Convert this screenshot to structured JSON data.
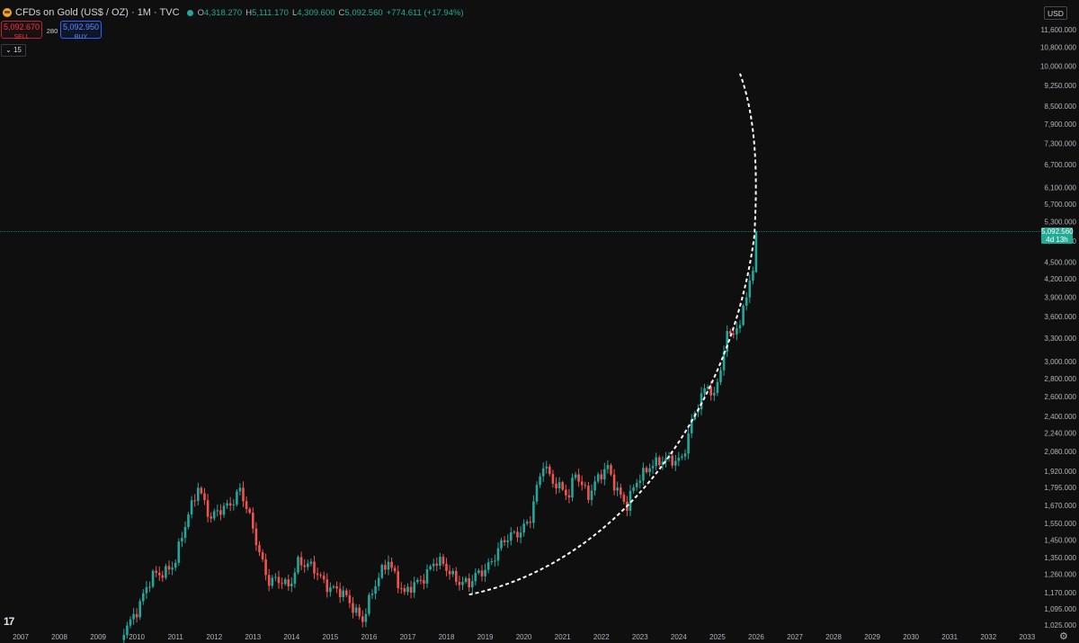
{
  "header": {
    "title": "CFDs on Gold (US$ / OZ) · 1M · TVC",
    "open_key": "O",
    "open": "4,318.270",
    "high_key": "H",
    "high": "5,111.170",
    "low_key": "L",
    "low": "4,309.600",
    "close_key": "C",
    "close": "5,092.560",
    "change": "+774.611 (+17.94%)"
  },
  "trade": {
    "sell_price": "5,092.670",
    "sell_label": "SELL",
    "spread": "280",
    "buy_price": "5,092.950",
    "buy_label": "BUY"
  },
  "collapse_label": "15",
  "currency": "USD",
  "last_price_label": {
    "price": "5,092.560",
    "countdown": "4d 13h"
  },
  "logo_text": "17",
  "colors": {
    "up": "#26a69a",
    "down": "#ef5350",
    "background": "#0f0f0f",
    "price_line": "#22ab94"
  },
  "chart_data": {
    "type": "candlestick",
    "title": "CFDs on Gold (US$ / OZ) · 1M · TVC",
    "scale": "log",
    "x_axis_ticks": [
      "2007",
      "2008",
      "2009",
      "2010",
      "2011",
      "2012",
      "2013",
      "2014",
      "2015",
      "2016",
      "2017",
      "2018",
      "2019",
      "2020",
      "2021",
      "2022",
      "2023",
      "2024",
      "2025",
      "2026",
      "2027",
      "2028",
      "2029",
      "2030",
      "2031",
      "2032",
      "2033"
    ],
    "y_axis_ticks": [
      1025,
      1095,
      1170,
      1260,
      1350,
      1450,
      1550,
      1670,
      1795,
      1920,
      2080,
      2240,
      2400,
      2600,
      2800,
      3000,
      3300,
      3600,
      3900,
      4200,
      4500,
      4900,
      5300,
      5700,
      6100,
      6700,
      7300,
      7900,
      8500,
      9250,
      10000,
      10800,
      11600
    ],
    "y_tick_labels": [
      "1,025.000",
      "1,095.000",
      "1,170.000",
      "1,260.000",
      "1,350.000",
      "1,450.000",
      "1,550.000",
      "1,670.000",
      "1,795.000",
      "1,920.000",
      "2,080.000",
      "2,240.000",
      "2,400.000",
      "2,600.000",
      "2,800.000",
      "3,000.000",
      "3,300.000",
      "3,600.000",
      "3,900.000",
      "4,200.000",
      "4,500.000",
      "4,900.000",
      "5,300.000",
      "5,700.000",
      "6,100.000",
      "6,700.000",
      "7,300.000",
      "7,900.000",
      "8,500.000",
      "9,250.000",
      "10,000.000",
      "10,800.000",
      "11,600.000"
    ],
    "price_key_points": [
      [
        "2009-09",
        1000
      ],
      [
        "2010-06",
        1240
      ],
      [
        "2011-01",
        1330
      ],
      [
        "2011-08",
        1830
      ],
      [
        "2011-12",
        1565
      ],
      [
        "2012-09",
        1775
      ],
      [
        "2013-06",
        1230
      ],
      [
        "2013-12",
        1200
      ],
      [
        "2014-03",
        1340
      ],
      [
        "2015-03",
        1180
      ],
      [
        "2015-11",
        1060
      ],
      [
        "2016-07",
        1350
      ],
      [
        "2016-12",
        1150
      ],
      [
        "2017-09",
        1320
      ],
      [
        "2017-12",
        1300
      ],
      [
        "2018-08",
        1200
      ],
      [
        "2019-06",
        1410
      ],
      [
        "2019-09",
        1470
      ],
      [
        "2020-03",
        1580
      ],
      [
        "2020-07",
        1970
      ],
      [
        "2021-03",
        1710
      ],
      [
        "2021-05",
        1905
      ],
      [
        "2021-09",
        1760
      ],
      [
        "2022-02",
        1905
      ],
      [
        "2022-03",
        1940
      ],
      [
        "2022-09",
        1660
      ],
      [
        "2022-12",
        1825
      ],
      [
        "2023-04",
        1990
      ],
      [
        "2023-10",
        1985
      ],
      [
        "2024-02",
        2045
      ],
      [
        "2024-05",
        2330
      ],
      [
        "2024-10",
        2745
      ],
      [
        "2024-12",
        2625
      ],
      [
        "2025-03",
        3120
      ],
      [
        "2025-04",
        3290
      ],
      [
        "2025-08",
        3445
      ],
      [
        "2025-09",
        3860
      ],
      [
        "2025-10",
        4000
      ],
      [
        "2025-12",
        4320
      ],
      [
        "2026-01",
        5092.56
      ]
    ],
    "last_candle": {
      "date": "2026-01",
      "open": 4318.27,
      "high": 5111.17,
      "low": 4309.6,
      "close": 5092.56
    },
    "last_price": 5092.56,
    "annotation": {
      "type": "dashed-parabolic-curve",
      "from": [
        "2018-08",
        1160
      ],
      "to": [
        "2025-08",
        9700
      ]
    },
    "ylim": [
      1000,
      12000
    ]
  }
}
